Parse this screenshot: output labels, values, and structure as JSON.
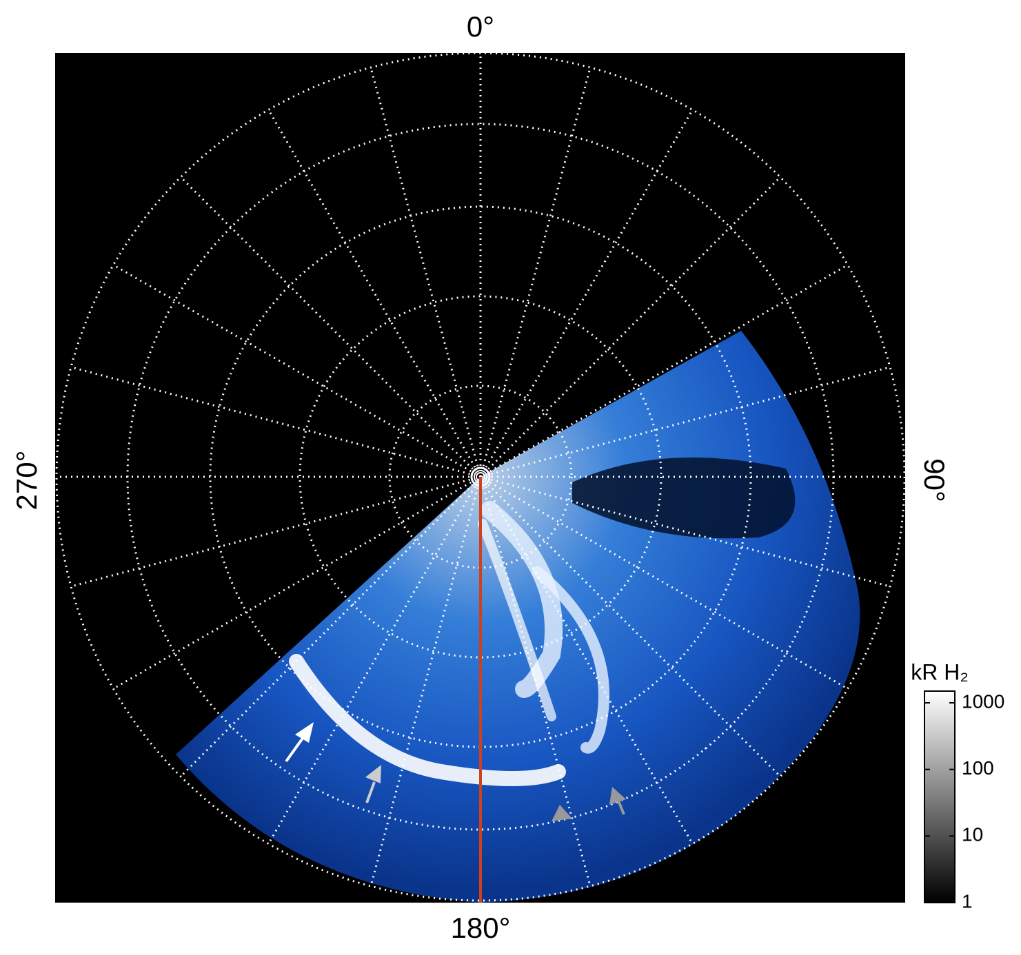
{
  "figure": {
    "angle_labels": {
      "top": "0°",
      "right": "90°",
      "bottom": "180°",
      "left": "270°"
    },
    "colorbar": {
      "label": "kR H₂",
      "scale": "log",
      "lim": [
        1,
        1500
      ],
      "ticks": [
        1,
        10,
        100,
        1000
      ]
    }
  }
}
